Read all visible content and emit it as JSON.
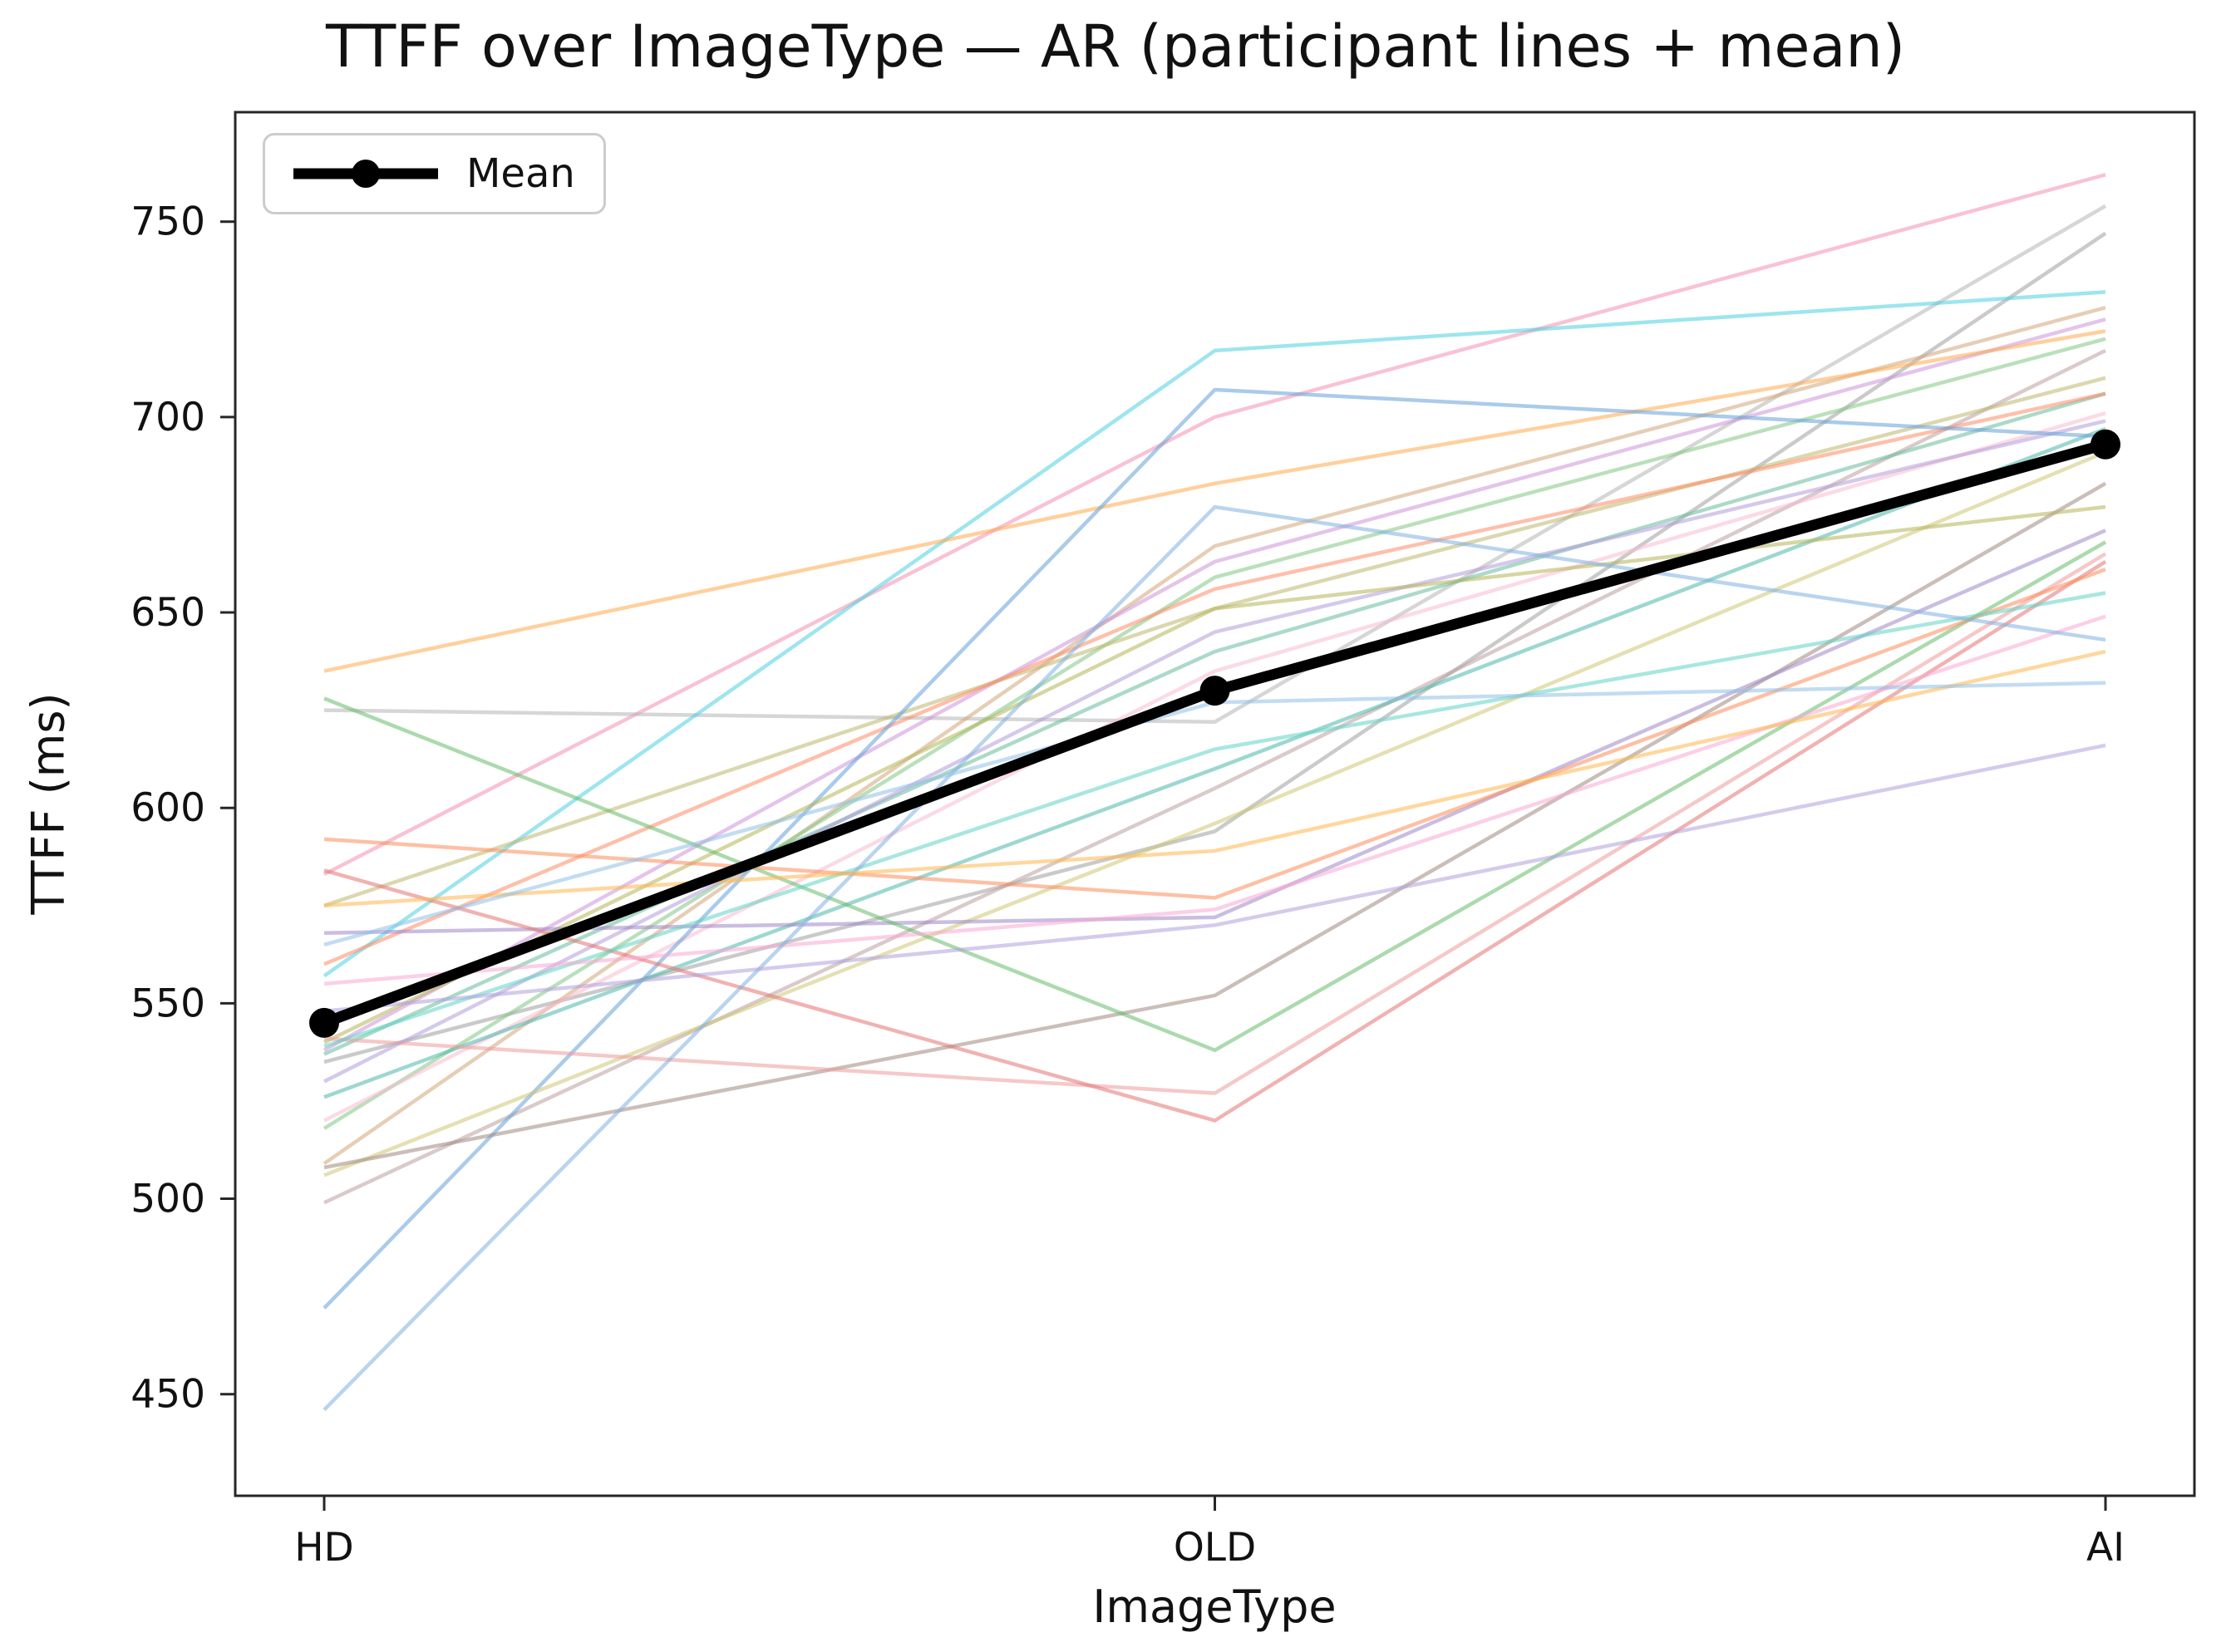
{
  "chart_data": {
    "type": "line",
    "title": "TTFF over ImageType — AR (participant lines + mean)",
    "xlabel": "ImageType",
    "ylabel": "TTFF (ms)",
    "categories": [
      "HD",
      "OLD",
      "AI"
    ],
    "yticks": [
      450,
      500,
      550,
      600,
      650,
      700,
      750
    ],
    "ylim": [
      424,
      778
    ],
    "grid": false,
    "legend": {
      "label": "Mean",
      "position": "upper left"
    },
    "mean": {
      "name": "Mean",
      "color": "#000000",
      "values": [
        545,
        630,
        693
      ]
    },
    "participants": [
      {
        "color": "#f48fb1",
        "values": [
          583,
          700,
          762
        ]
      },
      {
        "color": "#b5b5b5",
        "values": [
          625,
          622,
          754
        ]
      },
      {
        "color": "#9e9e9e",
        "values": [
          535,
          594,
          747
        ]
      },
      {
        "color": "#4dd0e1",
        "values": [
          557,
          717,
          732
        ]
      },
      {
        "color": "#d2a679",
        "values": [
          509,
          667,
          728
        ]
      },
      {
        "color": "#ce93d8",
        "values": [
          538,
          663,
          725
        ]
      },
      {
        "color": "#81c784",
        "values": [
          518,
          659,
          720
        ]
      },
      {
        "color": "#bc9e9e",
        "values": [
          499,
          605,
          717
        ]
      },
      {
        "color": "#bdb76b",
        "values": [
          575,
          651,
          710
        ]
      },
      {
        "color": "#66bb9a",
        "values": [
          537,
          640,
          706
        ]
      },
      {
        "color": "#ffa94d",
        "values": [
          635,
          683,
          722
        ]
      },
      {
        "color": "#ff8a65",
        "values": [
          560,
          656,
          706
        ]
      },
      {
        "color": "#f8bbd0",
        "values": [
          520,
          635,
          701
        ]
      },
      {
        "color": "#b39ddb",
        "values": [
          530,
          645,
          699
        ]
      },
      {
        "color": "#4db6ac",
        "values": [
          526,
          610,
          697
        ]
      },
      {
        "color": "#64a0d8",
        "values": [
          472,
          707,
          695
        ]
      },
      {
        "color": "#cdc673",
        "values": [
          506,
          596,
          691
        ]
      },
      {
        "color": "#a1887f",
        "values": [
          508,
          552,
          683
        ]
      },
      {
        "color": "#b5b558",
        "values": [
          540,
          651,
          677
        ]
      },
      {
        "color": "#9f86c9",
        "values": [
          568,
          572,
          671
        ]
      },
      {
        "color": "#66bb6a",
        "values": [
          628,
          538,
          668
        ]
      },
      {
        "color": "#ef9a9a",
        "values": [
          541,
          527,
          665
        ]
      },
      {
        "color": "#e57373",
        "values": [
          584,
          520,
          663
        ]
      },
      {
        "color": "#fb8c5a",
        "values": [
          592,
          577,
          661
        ]
      },
      {
        "color": "#5fd3c4",
        "values": [
          539,
          615,
          655
        ]
      },
      {
        "color": "#f9a8d4",
        "values": [
          555,
          574,
          649
        ]
      },
      {
        "color": "#7fb1e0",
        "values": [
          446,
          677,
          643
        ]
      },
      {
        "color": "#ffb74d",
        "values": [
          575,
          589,
          640
        ]
      },
      {
        "color": "#90c0e8",
        "values": [
          565,
          627,
          632
        ]
      },
      {
        "color": "#b0a0dc",
        "values": [
          548,
          570,
          616
        ]
      }
    ],
    "style": {
      "axis_color": "#262626",
      "text_color": "#111111",
      "mean_color": "#000000",
      "participant_opacity": 0.55
    }
  }
}
